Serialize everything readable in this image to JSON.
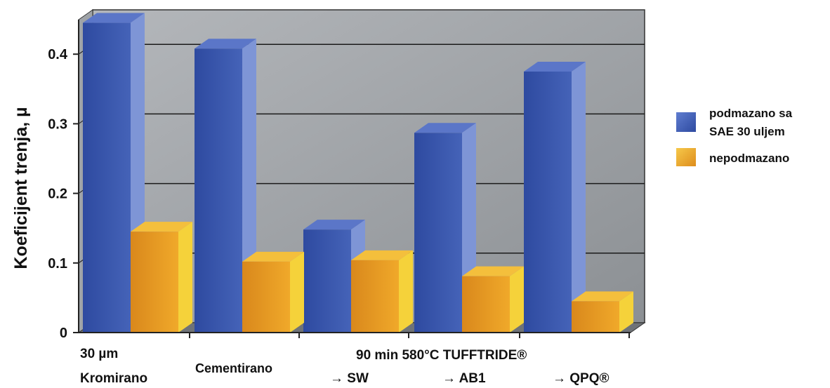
{
  "chart_data": {
    "type": "bar",
    "ylabel": "Koeficijent trenja, µ",
    "ylim": [
      0,
      0.45
    ],
    "yticks": [
      "0",
      "0.1",
      "0.2",
      "0.3",
      "0.4"
    ],
    "ytick_values": [
      0,
      0.1,
      0.2,
      0.3,
      0.4
    ],
    "grid": true,
    "legend_position": "right",
    "categories": [
      "30 µm Kromirano",
      "Cementirano",
      "→ SW",
      "→ AB1",
      "→ QPQ®"
    ],
    "category_labels": {
      "kromirano_line1": "30 µm",
      "kromirano_line2": "Kromirano",
      "cementirano": "Cementirano",
      "group_header": "90 min 580°C TUFFTRIDE®",
      "sw": "→ SW",
      "ab1": "→ AB1",
      "qpq": "→ QPQ®"
    },
    "series": [
      {
        "name": "podmazano sa SAE 30 uljem",
        "legend_line1": "podmazano sa",
        "legend_line2": "SAE 30 uljem",
        "color": "#3a55a8",
        "values": [
          0.445,
          0.408,
          0.148,
          0.287,
          0.375
        ]
      },
      {
        "name": "nepodmazano",
        "color": "#e9a321",
        "values": [
          0.145,
          0.102,
          0.104,
          0.081,
          0.045
        ]
      }
    ]
  }
}
